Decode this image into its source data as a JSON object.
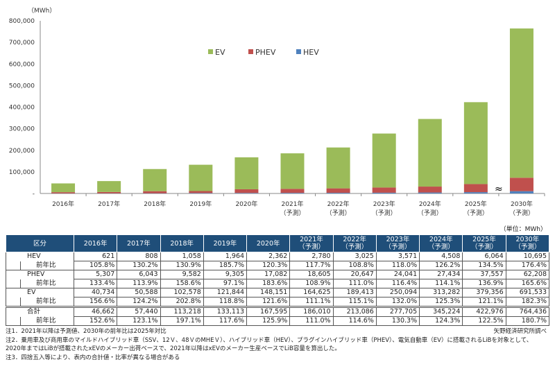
{
  "chart_data": {
    "type": "bar",
    "stacked": true,
    "ylabel": "（MWh）",
    "ylim": [
      0,
      800000
    ],
    "yticks": [
      "-",
      "100,000",
      "200,000",
      "300,000",
      "400,000",
      "500,000",
      "600,000",
      "700,000",
      "800,000"
    ],
    "categories": [
      [
        "2016年"
      ],
      [
        "2017年"
      ],
      [
        "2018年"
      ],
      [
        "2019年"
      ],
      [
        "2020年"
      ],
      [
        "2021年",
        "（予測）"
      ],
      [
        "2022年",
        "（予測）"
      ],
      [
        "2023年",
        "（予測）"
      ],
      [
        "2024年",
        "（予測）"
      ],
      [
        "2025年",
        "（予測）"
      ],
      [
        "2030年",
        "（予測）"
      ]
    ],
    "axis_break": "≈",
    "legend_position": "top-left",
    "series": [
      {
        "name": "EV",
        "color": "#9bbb59",
        "values": [
          40734,
          50588,
          102578,
          121844,
          148151,
          164625,
          189413,
          250094,
          313282,
          379356,
          691533
        ]
      },
      {
        "name": "PHEV",
        "color": "#c0504d",
        "values": [
          5307,
          6043,
          9582,
          9305,
          17082,
          18605,
          20647,
          24041,
          27434,
          37557,
          62208
        ]
      },
      {
        "name": "HEV",
        "color": "#4f81bd",
        "values": [
          621,
          808,
          1058,
          1964,
          2362,
          2780,
          3025,
          3571,
          4508,
          6064,
          10695
        ]
      }
    ]
  },
  "table": {
    "unit": "（単位：MWh）",
    "header": [
      "区分",
      [
        "2016年"
      ],
      [
        "2017年"
      ],
      [
        "2018年"
      ],
      [
        "2019年"
      ],
      [
        "2020年"
      ],
      [
        "2021年",
        "（予測）"
      ],
      [
        "2022年",
        "（予測）"
      ],
      [
        "2023年",
        "（予測）"
      ],
      [
        "2024年",
        "（予測）"
      ],
      [
        "2025年",
        "（予測）"
      ],
      [
        "2030年",
        "（予測）"
      ]
    ],
    "rows": [
      {
        "label": "HEV",
        "values": [
          "621",
          "808",
          "1,058",
          "1,964",
          "2,362",
          "2,780",
          "3,025",
          "3,571",
          "4,508",
          "6,064",
          "10,695"
        ],
        "yoy_label": "前年比",
        "yoy": [
          "105.8%",
          "130.2%",
          "130.9%",
          "185.7%",
          "120.3%",
          "117.7%",
          "108.8%",
          "118.0%",
          "126.2%",
          "134.5%",
          "176.4%"
        ]
      },
      {
        "label": "PHEV",
        "values": [
          "5,307",
          "6,043",
          "9,582",
          "9,305",
          "17,082",
          "18,605",
          "20,647",
          "24,041",
          "27,434",
          "37,557",
          "62,208"
        ],
        "yoy_label": "前年比",
        "yoy": [
          "133.4%",
          "113.9%",
          "158.6%",
          "97.1%",
          "183.6%",
          "108.9%",
          "111.0%",
          "116.4%",
          "114.1%",
          "136.9%",
          "165.6%"
        ]
      },
      {
        "label": "EV",
        "values": [
          "40,734",
          "50,588",
          "102,578",
          "121,844",
          "148,151",
          "164,625",
          "189,413",
          "250,094",
          "313,282",
          "379,356",
          "691,533"
        ],
        "yoy_label": "前年比",
        "yoy": [
          "156.6%",
          "124.2%",
          "202.8%",
          "118.8%",
          "121.6%",
          "111.1%",
          "115.1%",
          "132.0%",
          "125.3%",
          "121.1%",
          "182.3%"
        ]
      },
      {
        "label": "合計",
        "values": [
          "46,662",
          "57,440",
          "113,218",
          "133,113",
          "167,595",
          "186,010",
          "213,086",
          "277,705",
          "345,224",
          "422,976",
          "764,436"
        ],
        "yoy_label": "前年比",
        "yoy": [
          "152.6%",
          "123.1%",
          "197.1%",
          "117.6%",
          "125.9%",
          "111.0%",
          "114.6%",
          "130.3%",
          "124.3%",
          "122.5%",
          "180.7%"
        ]
      }
    ]
  },
  "notes": [
    "注1．2021年以降は予測値、2030年の前年比は2025年対比",
    "注2．乗用車及び商用車のマイルドハイブリッド車（SSV、12Ｖ、48ＶのMHEＶ）、ハイブリッド車（HEV）、プラグインハイブリッド車（PHEV）、電気自動車（EV）に搭載されるLiBを対象として、",
    "2020年まではLiBが搭載されたxEVのメーカー出荷ベースで、2021年以降はxEVのメーカー生産ベースでLiB容量を算出した。",
    "注3．四捨五入等により、表内の合計値・比率が異なる場合がある"
  ],
  "source": "矢野経済研究所調べ"
}
